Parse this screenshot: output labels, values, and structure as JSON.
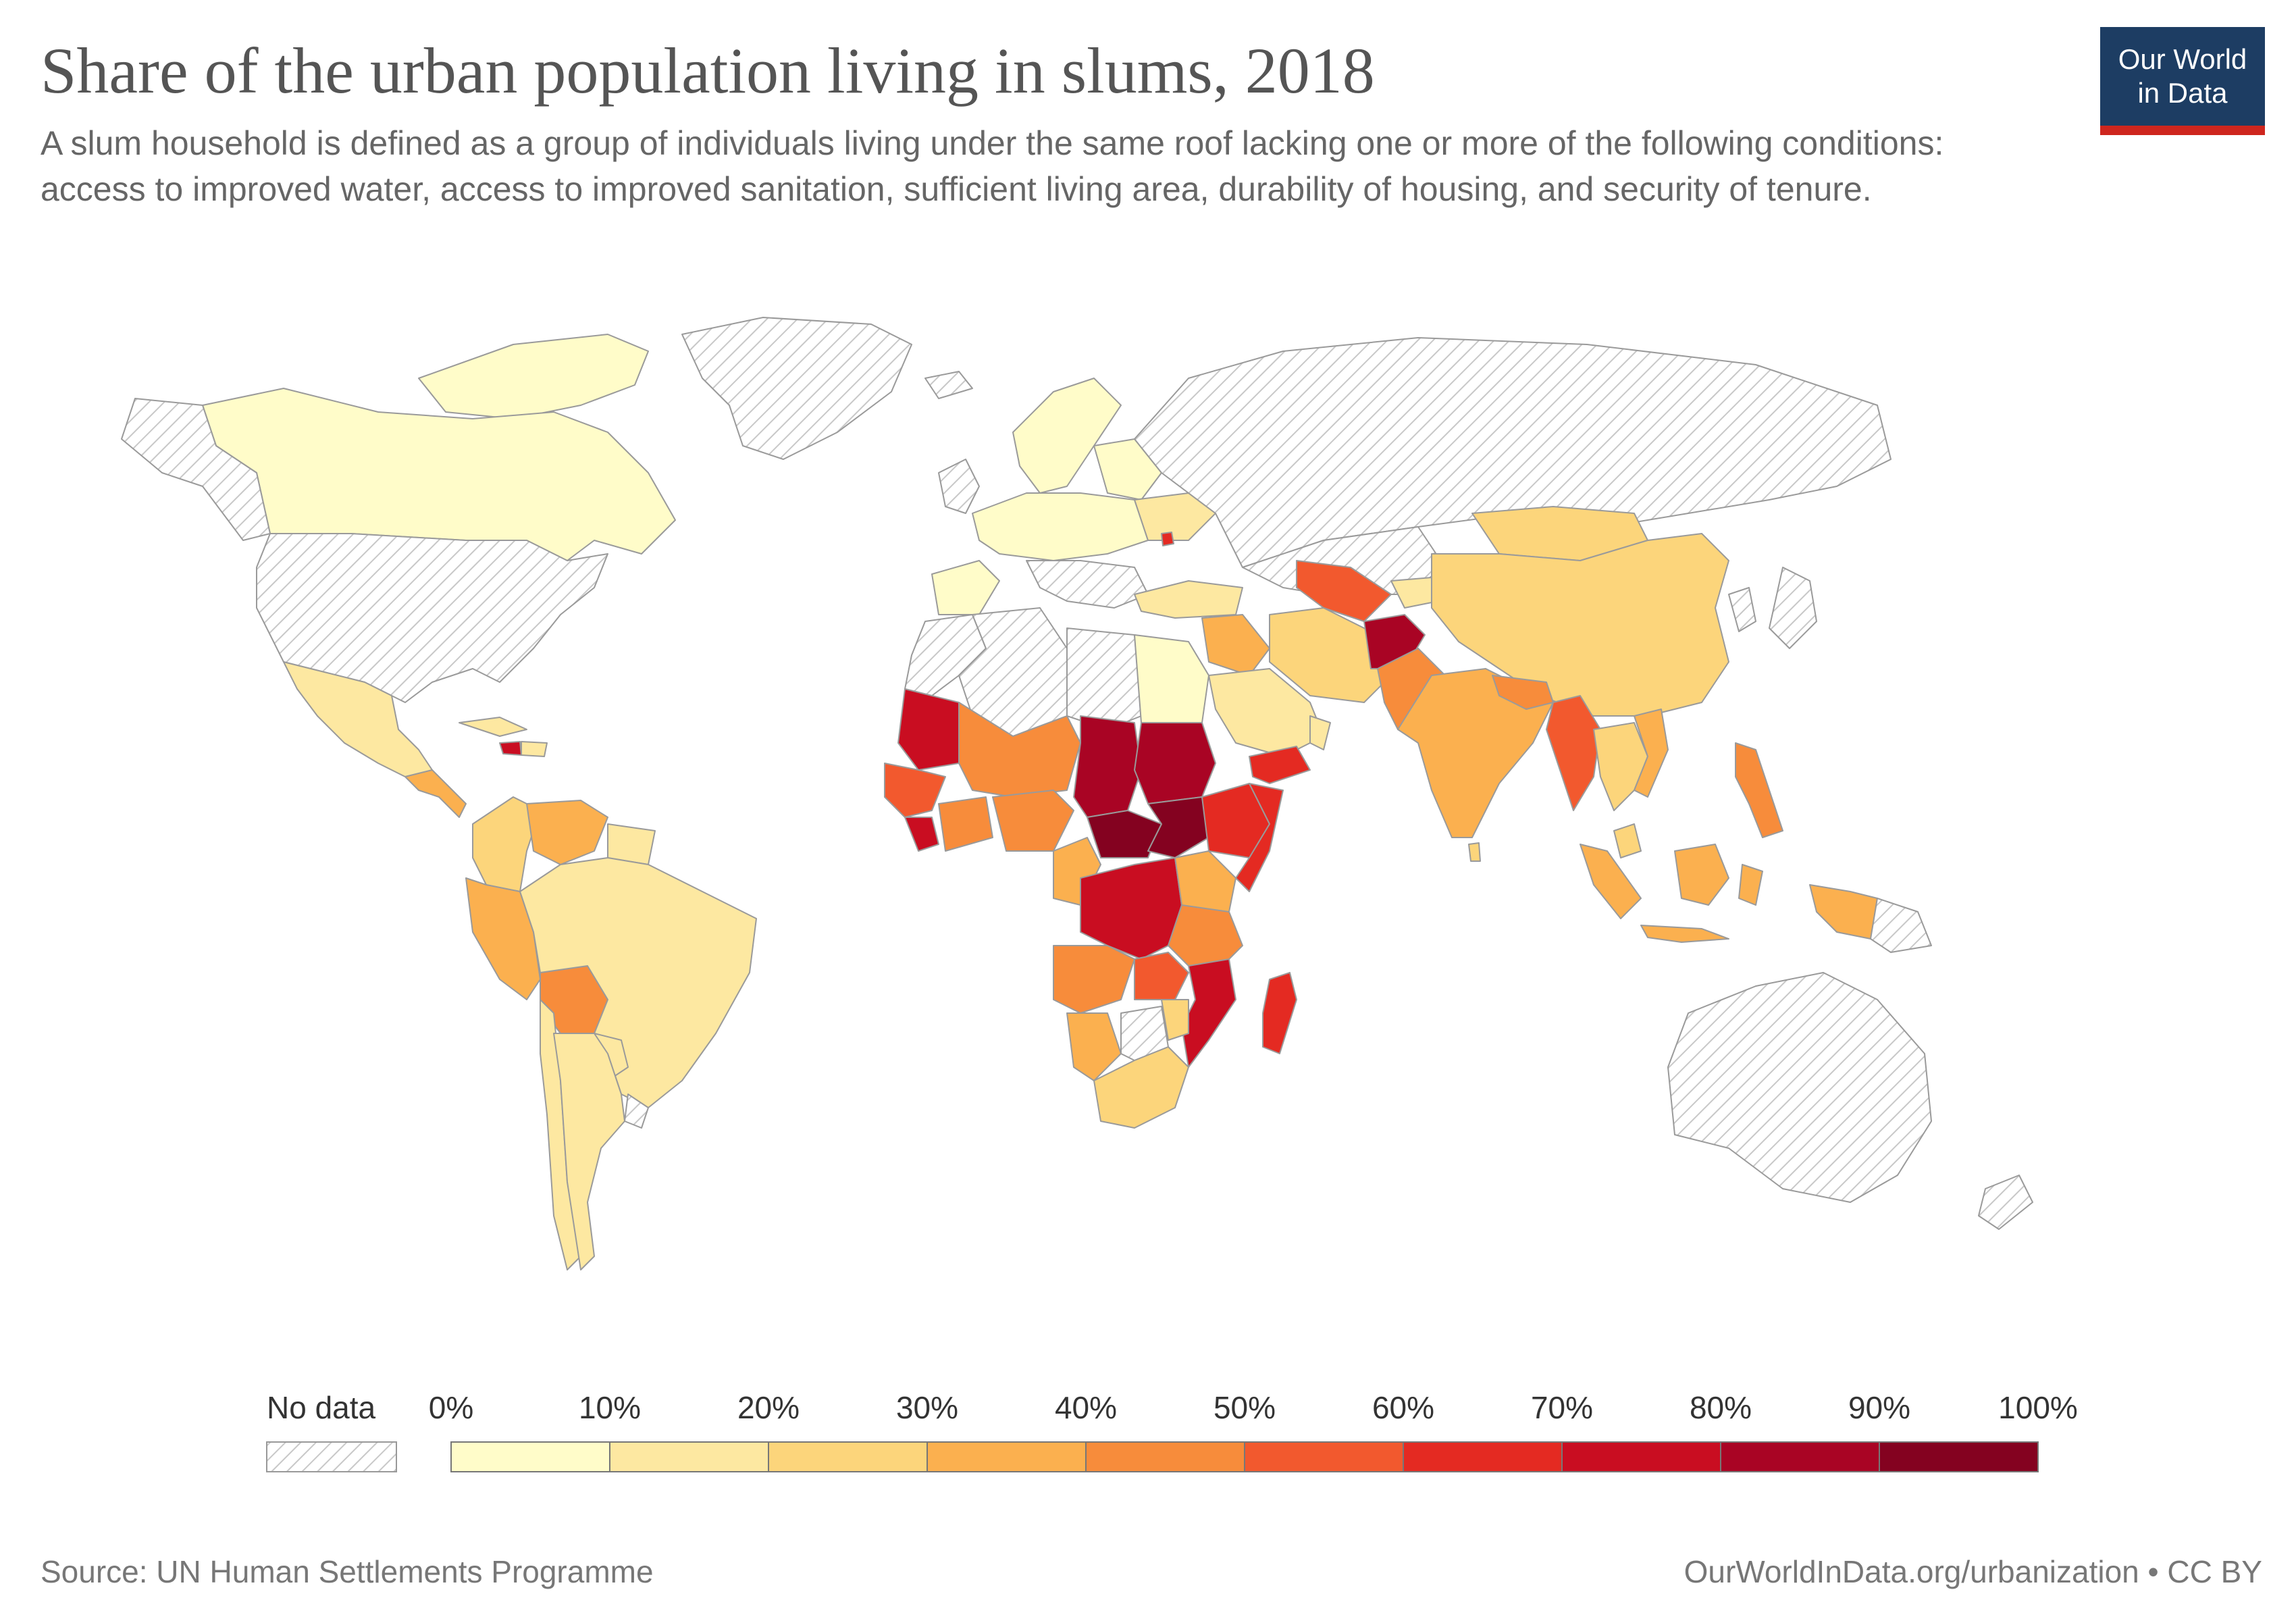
{
  "title": "Share of the urban population living in slums, 2018",
  "subtitle": "A slum household is defined as a group of individuals living under the same roof lacking one or more of the following conditions: access to improved water, access to improved sanitation, sufficient living area, durability of housing, and security of tenure.",
  "logo": {
    "line1": "Our World",
    "line2": "in Data"
  },
  "legend": {
    "no_data_label": "No data",
    "ticks": [
      "0%",
      "10%",
      "20%",
      "30%",
      "40%",
      "50%",
      "60%",
      "70%",
      "80%",
      "90%",
      "100%"
    ],
    "colors": [
      "#fffcc9",
      "#fde8a1",
      "#fcd57b",
      "#fbb04f",
      "#f78c3b",
      "#f2592e",
      "#e42a22",
      "#c90d21",
      "#a90424",
      "#840220"
    ]
  },
  "footer": {
    "source": "Source: UN Human Settlements Programme",
    "url": "OurWorldInData.org/urbanization • CC BY"
  },
  "chart_data": {
    "type": "choropleth",
    "title": "Share of the urban population living in slums, 2018",
    "unit": "%",
    "scale": [
      0,
      100
    ],
    "bins": [
      0,
      10,
      20,
      30,
      40,
      50,
      60,
      70,
      80,
      90,
      100
    ],
    "no_data": [
      "United States",
      "Canada north",
      "Greenland",
      "Russia",
      "Europe (most)",
      "Australia",
      "Japan",
      "Argentina south",
      "Libya",
      "Algeria",
      "Morocco",
      "Western Sahara"
    ],
    "regions": [
      {
        "name": "Mexico",
        "bin": "10-20%"
      },
      {
        "name": "Brazil",
        "bin": "10-20%"
      },
      {
        "name": "Argentina",
        "bin": "10-20%"
      },
      {
        "name": "Bolivia",
        "bin": "40-50%"
      },
      {
        "name": "Venezuela",
        "bin": "30-40%"
      },
      {
        "name": "Haiti",
        "bin": "70-80%"
      },
      {
        "name": "Mauritania",
        "bin": "70-80%"
      },
      {
        "name": "Chad",
        "bin": "80-90%"
      },
      {
        "name": "Sudan",
        "bin": "80-90%"
      },
      {
        "name": "Central African Republic",
        "bin": "90-100%"
      },
      {
        "name": "South Sudan",
        "bin": "90-100%"
      },
      {
        "name": "DR Congo",
        "bin": "70-80%"
      },
      {
        "name": "Ethiopia",
        "bin": "60-70%"
      },
      {
        "name": "Somalia",
        "bin": "60-70%"
      },
      {
        "name": "Yemen",
        "bin": "60-70%"
      },
      {
        "name": "Mozambique",
        "bin": "70-80%"
      },
      {
        "name": "Madagascar",
        "bin": "60-70%"
      },
      {
        "name": "Nigeria",
        "bin": "40-50%"
      },
      {
        "name": "Angola",
        "bin": "40-50%"
      },
      {
        "name": "South Africa",
        "bin": "20-30%"
      },
      {
        "name": "Egypt",
        "bin": "0-10%"
      },
      {
        "name": "Afghanistan",
        "bin": "70-80%"
      },
      {
        "name": "India",
        "bin": "30-40%"
      },
      {
        "name": "China",
        "bin": "20-30%"
      },
      {
        "name": "Myanmar",
        "bin": "50-60%"
      },
      {
        "name": "Indonesia",
        "bin": "30-40%"
      },
      {
        "name": "Philippines",
        "bin": "40-50%"
      },
      {
        "name": "Turkmenistan",
        "bin": "50-60%"
      }
    ]
  }
}
